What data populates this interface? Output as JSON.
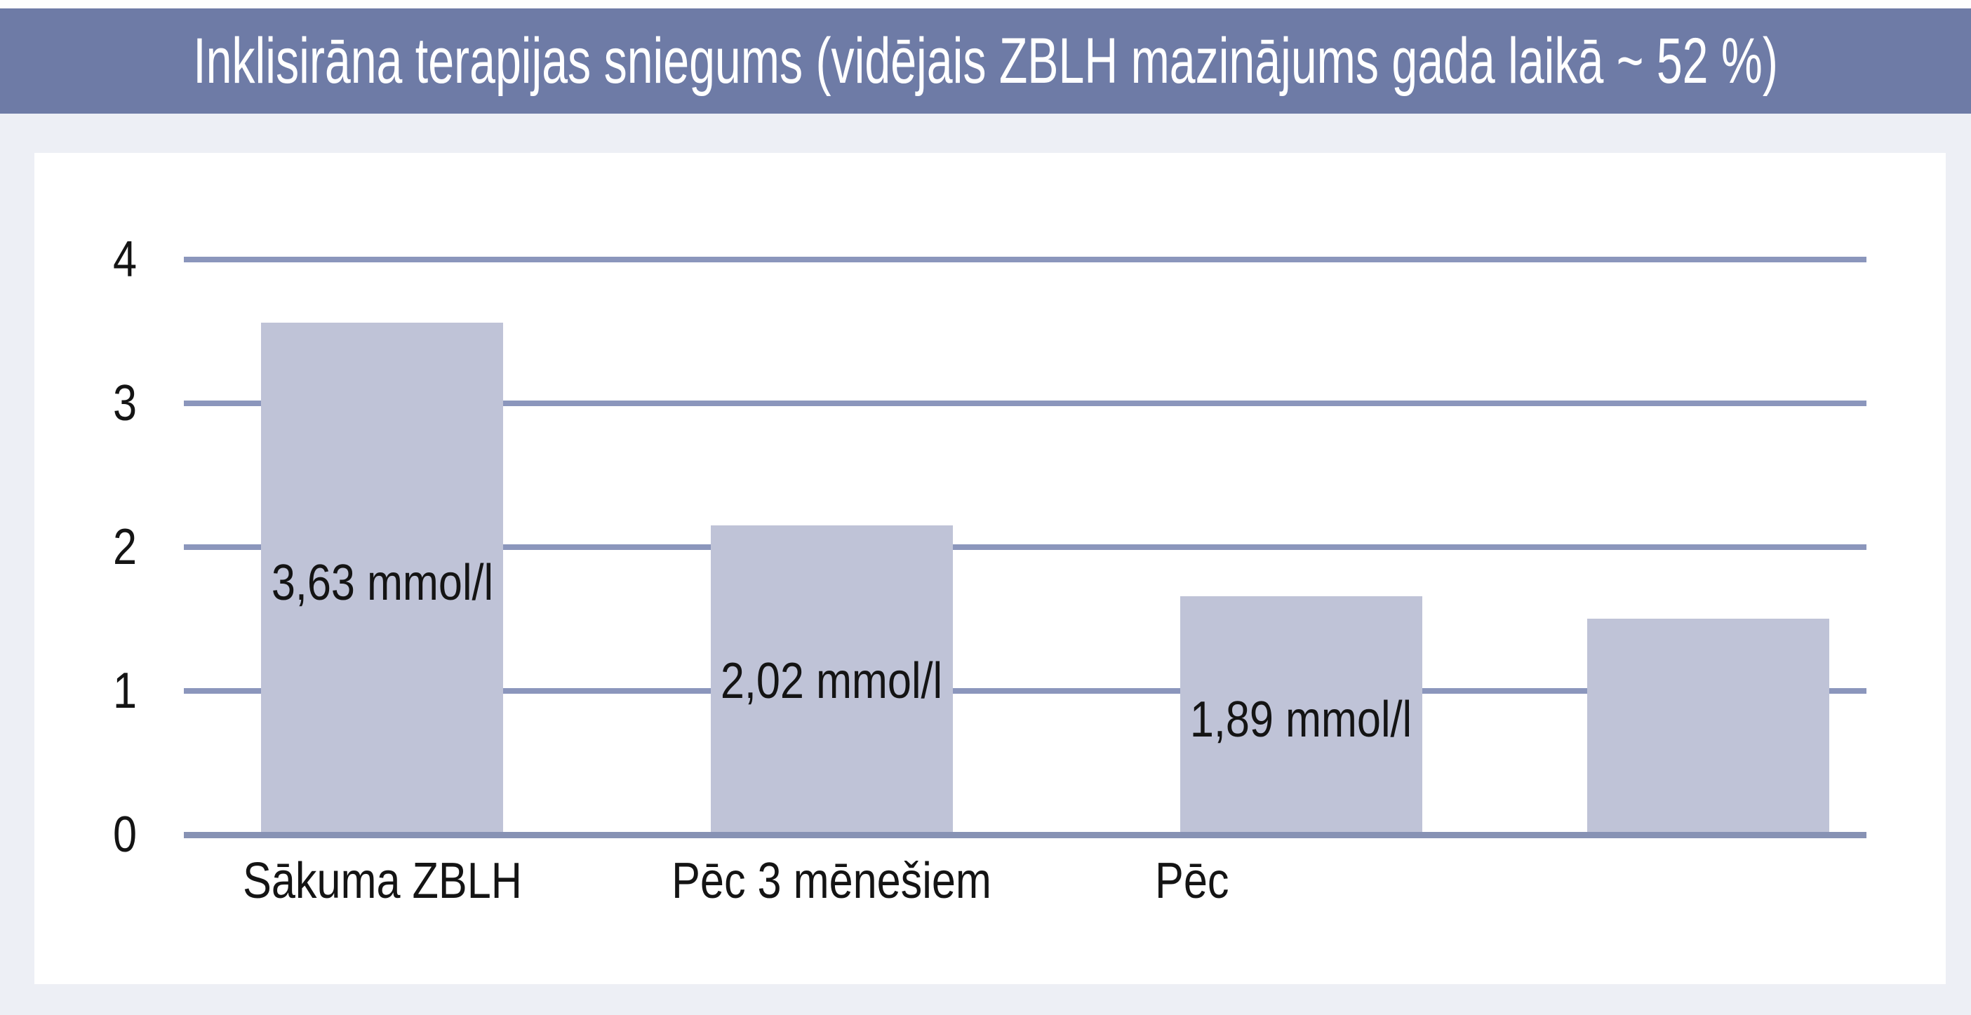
{
  "title_bar": {
    "text": "Inklisirāna terapijas sniegums (vidējais ZBLH mazinājums gada laikā ~ 52 %)"
  },
  "colors": {
    "page_bg": "#edeff5",
    "title_band_bg": "#6e7ba6",
    "title_text": "#ffffff",
    "panel_bg": "#ffffff",
    "bar_fill": "#bfc3d7",
    "gridline": "#8b96bc",
    "axis_line": "#8792b4",
    "label_text": "#141414"
  },
  "chart_data": {
    "type": "bar",
    "title": "Inklisirāna terapijas sniegums (vidējais ZBLH mazinājums gada laikā ~ 52 %)",
    "categories": [
      "Sākuma ZBLH",
      "Pēc 3 mēnešiem",
      "Pēc",
      ""
    ],
    "values": [
      3.63,
      2.02,
      1.89,
      null
    ],
    "value_labels": [
      "3,63 mmol/l",
      "2,02 mmol/l",
      "1,89 mmol/l",
      ""
    ],
    "unit": "mmol/l",
    "ylabel": "",
    "xlabel": "",
    "ylim": [
      0,
      4
    ],
    "yticks": [
      0,
      1,
      2,
      3,
      4
    ],
    "grid": true,
    "legend": false,
    "bar_heights_units_as_drawn": [
      3.56,
      2.15,
      1.66,
      1.5
    ],
    "layout_hints": {
      "bar_centers_frac": [
        0.118,
        0.385,
        0.664,
        0.906
      ],
      "bar_width_frac": 0.144,
      "value_label_y_units": [
        1.75,
        1.07,
        0.8,
        null
      ],
      "xlabel_align": [
        "center",
        "center",
        "left",
        "center"
      ],
      "xlabel_left_frac": [
        null,
        null,
        0.577,
        null
      ]
    }
  }
}
